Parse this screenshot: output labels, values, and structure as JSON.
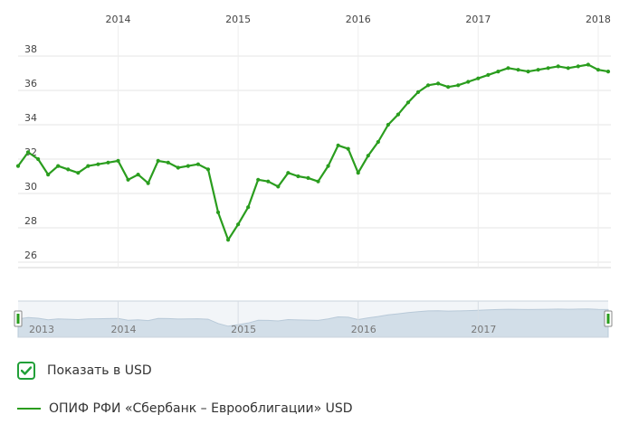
{
  "chart_data": {
    "type": "line",
    "title": "",
    "xlabel": "",
    "ylabel": "",
    "x_ticks": [
      "2014",
      "2015",
      "2016",
      "2017",
      "2018"
    ],
    "y_ticks": [
      "26",
      "28",
      "30",
      "32",
      "34",
      "36",
      "38"
    ],
    "ylim": [
      25,
      40
    ],
    "xlim": [
      "2013-03",
      "2018-02"
    ],
    "grid": true,
    "series": [
      {
        "name": "ОПИФ РФИ «Сбербанк – Еврооблигации» USD",
        "color": "#2a9d1e",
        "x": [
          "2013-03",
          "2013-04",
          "2013-05",
          "2013-06",
          "2013-07",
          "2013-08",
          "2013-09",
          "2013-10",
          "2013-11",
          "2013-12",
          "2014-01",
          "2014-02",
          "2014-03",
          "2014-04",
          "2014-05",
          "2014-06",
          "2014-07",
          "2014-08",
          "2014-09",
          "2014-10",
          "2014-11",
          "2014-12",
          "2015-01",
          "2015-02",
          "2015-03",
          "2015-04",
          "2015-05",
          "2015-06",
          "2015-07",
          "2015-08",
          "2015-09",
          "2015-10",
          "2015-11",
          "2015-12",
          "2016-01",
          "2016-02",
          "2016-03",
          "2016-04",
          "2016-05",
          "2016-06",
          "2016-07",
          "2016-08",
          "2016-09",
          "2016-10",
          "2016-11",
          "2016-12",
          "2017-01",
          "2017-02",
          "2017-03",
          "2017-04",
          "2017-05",
          "2017-06",
          "2017-07",
          "2017-08",
          "2017-09",
          "2017-10",
          "2017-11",
          "2017-12",
          "2018-01",
          "2018-02"
        ],
        "y": [
          31.6,
          32.4,
          32.0,
          31.1,
          31.6,
          31.4,
          31.2,
          31.6,
          31.7,
          31.8,
          31.9,
          30.8,
          31.1,
          30.6,
          31.9,
          31.8,
          31.5,
          31.6,
          31.7,
          31.4,
          28.9,
          27.3,
          28.2,
          29.2,
          30.8,
          30.7,
          30.4,
          31.2,
          31.0,
          30.9,
          30.7,
          31.6,
          32.8,
          32.6,
          31.2,
          32.2,
          33.0,
          34.0,
          34.6,
          35.3,
          35.9,
          36.3,
          36.4,
          36.2,
          36.3,
          36.5,
          36.7,
          36.9,
          37.1,
          37.3,
          37.2,
          37.1,
          37.2,
          37.3,
          37.4,
          37.3,
          37.4,
          37.5,
          37.2,
          37.1
        ],
        "values_note_free": true
      }
    ]
  },
  "navigator": {
    "labels": [
      "2013",
      "2014",
      "2015",
      "2016",
      "2017"
    ]
  },
  "controls": {
    "show_usd_label": "Показать в USD",
    "show_usd_checked": true
  },
  "legend": {
    "label": "ОПИФ РФИ «Сбербанк – Еврооблигации» USD"
  },
  "colors": {
    "line": "#2a9d1e",
    "accent": "#21a038",
    "grid": "#e6e6e6",
    "navigator_fill": "#d2dee8"
  }
}
